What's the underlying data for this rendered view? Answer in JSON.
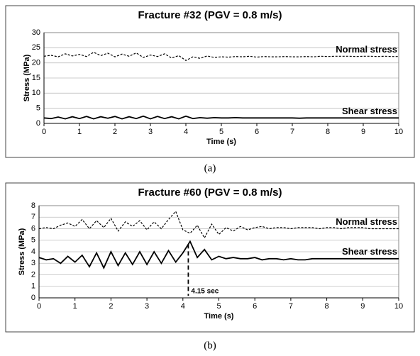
{
  "chart_data": [
    {
      "type": "line",
      "title": "Fracture #32 (PGV = 0.8 m/s)",
      "xlabel": "Time (s)",
      "ylabel": "Stress (MPa)",
      "caption": "(a)",
      "xlim": [
        0,
        10
      ],
      "xticks": [
        0,
        1,
        2,
        3,
        4,
        5,
        6,
        7,
        8,
        9,
        10
      ],
      "ylim": [
        0,
        30
      ],
      "yticks": [
        0,
        5,
        10,
        15,
        20,
        25,
        30
      ],
      "grid": true,
      "x": [
        0,
        0.2,
        0.4,
        0.6,
        0.8,
        1,
        1.2,
        1.4,
        1.6,
        1.8,
        2,
        2.2,
        2.4,
        2.6,
        2.8,
        3,
        3.2,
        3.4,
        3.6,
        3.8,
        4,
        4.2,
        4.4,
        4.6,
        4.8,
        5,
        5.2,
        5.4,
        5.6,
        5.8,
        6,
        6.2,
        6.4,
        6.6,
        6.8,
        7,
        7.2,
        7.4,
        7.6,
        7.8,
        8,
        8.2,
        8.4,
        8.6,
        8.8,
        9,
        9.2,
        9.4,
        9.6,
        9.8,
        10
      ],
      "series": [
        {
          "name": "Normal stress",
          "color": "#000000",
          "style": "dashed",
          "values": [
            22.2,
            22.5,
            22.0,
            23.0,
            22.3,
            22.8,
            22.1,
            23.5,
            22.4,
            23.2,
            22.0,
            22.9,
            22.2,
            23.3,
            21.8,
            22.6,
            22.1,
            23.0,
            21.6,
            22.4,
            20.8,
            22.0,
            21.5,
            22.3,
            21.8,
            22.0,
            21.9,
            22.1,
            22.0,
            22.2,
            21.9,
            22.1,
            22.0,
            22.0,
            22.1,
            22.0,
            22.0,
            22.1,
            22.0,
            22.2,
            22.1,
            22.2,
            22.2,
            22.2,
            22.1,
            22.2,
            22.2,
            22.1,
            22.2,
            22.1,
            22.1
          ]
        },
        {
          "name": "Shear stress",
          "color": "#000000",
          "style": "solid",
          "values": [
            1.8,
            1.6,
            2.1,
            1.5,
            2.2,
            1.6,
            2.3,
            1.5,
            2.2,
            1.7,
            2.3,
            1.5,
            2.2,
            1.6,
            2.4,
            1.5,
            2.3,
            1.6,
            2.2,
            1.5,
            2.4,
            1.6,
            1.9,
            1.7,
            1.9,
            1.8,
            1.8,
            1.9,
            1.8,
            1.8,
            1.8,
            1.8,
            1.8,
            1.8,
            1.8,
            1.8,
            1.7,
            1.8,
            1.8,
            1.8,
            1.8,
            1.8,
            1.8,
            1.8,
            1.8,
            1.8,
            1.8,
            1.8,
            1.8,
            1.8,
            1.8
          ]
        }
      ]
    },
    {
      "type": "line",
      "title": "Fracture #60 (PGV = 0.8 m/s)",
      "xlabel": "Time (s)",
      "ylabel": "Stress (MPa)",
      "caption": "(b)",
      "xlim": [
        0,
        10
      ],
      "xticks": [
        0,
        1,
        2,
        3,
        4,
        5,
        6,
        7,
        8,
        9,
        10
      ],
      "ylim": [
        0,
        8
      ],
      "yticks": [
        0,
        1,
        2,
        3,
        4,
        5,
        6,
        7,
        8
      ],
      "grid": true,
      "x": [
        0,
        0.2,
        0.4,
        0.6,
        0.8,
        1,
        1.2,
        1.4,
        1.6,
        1.8,
        2,
        2.2,
        2.4,
        2.6,
        2.8,
        3,
        3.2,
        3.4,
        3.6,
        3.8,
        4,
        4.2,
        4.4,
        4.6,
        4.8,
        5,
        5.2,
        5.4,
        5.6,
        5.8,
        6,
        6.2,
        6.4,
        6.6,
        6.8,
        7,
        7.2,
        7.4,
        7.6,
        7.8,
        8,
        8.2,
        8.4,
        8.6,
        8.8,
        9,
        9.2,
        9.4,
        9.6,
        9.8,
        10
      ],
      "series": [
        {
          "name": "Normal stress",
          "color": "#000000",
          "style": "dashed",
          "values": [
            6.0,
            6.1,
            6.0,
            6.3,
            6.5,
            6.2,
            6.8,
            6.0,
            6.7,
            6.1,
            6.9,
            5.8,
            6.6,
            6.2,
            6.7,
            5.9,
            6.6,
            6.0,
            6.8,
            7.5,
            5.9,
            5.6,
            6.3,
            5.2,
            6.4,
            5.5,
            6.1,
            5.8,
            6.2,
            5.9,
            6.1,
            6.2,
            6.0,
            6.1,
            6.1,
            6.0,
            6.1,
            6.1,
            6.1,
            6.0,
            6.1,
            6.1,
            6.0,
            6.1,
            6.1,
            6.1,
            6.0,
            6.0,
            6.0,
            6.0,
            6.0
          ]
        },
        {
          "name": "Shear stress",
          "color": "#000000",
          "style": "solid",
          "values": [
            3.5,
            3.3,
            3.4,
            3.0,
            3.6,
            3.1,
            3.7,
            2.7,
            3.9,
            2.6,
            4.0,
            2.8,
            3.9,
            2.9,
            4.0,
            2.9,
            4.0,
            3.0,
            4.1,
            3.1,
            3.9,
            4.9,
            3.5,
            4.2,
            3.3,
            3.6,
            3.4,
            3.5,
            3.4,
            3.4,
            3.5,
            3.3,
            3.4,
            3.4,
            3.3,
            3.4,
            3.3,
            3.3,
            3.4,
            3.4,
            3.4,
            3.4,
            3.4,
            3.4,
            3.4,
            3.4,
            3.4,
            3.4,
            3.4,
            3.4,
            3.4
          ]
        }
      ],
      "marker": {
        "x": 4.15,
        "label": "4.15 sec"
      }
    }
  ]
}
